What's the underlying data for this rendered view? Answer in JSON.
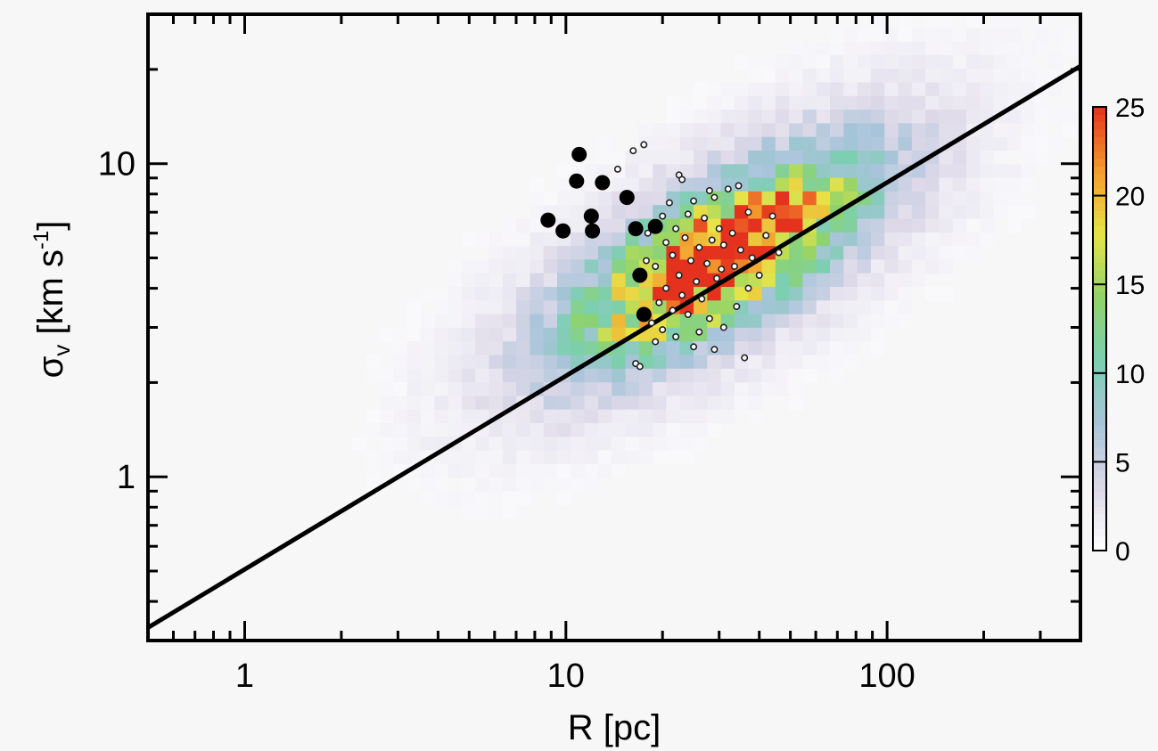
{
  "chart_data": {
    "type": "scatter",
    "subtype": "2D density histogram with overlaid scatter points and power-law line",
    "xlabel": "R [pc]",
    "ylabel_main": "σ",
    "ylabel_sub": "v",
    "ylabel_unit_pre": " [km s",
    "ylabel_unit_exp": "-1",
    "ylabel_unit_post": "]",
    "xscale": "log",
    "yscale": "log",
    "xlim": [
      0.5,
      400
    ],
    "ylim": [
      0.3,
      30
    ],
    "xticks": [
      {
        "value": 1,
        "label": "1"
      },
      {
        "value": 10,
        "label": "10"
      },
      {
        "value": 100,
        "label": "100"
      }
    ],
    "yticks": [
      {
        "value": 1,
        "label": "1"
      },
      {
        "value": 10,
        "label": "10"
      }
    ],
    "grid": false,
    "fit_line": {
      "points": [
        [
          0.5,
          0.33
        ],
        [
          400,
          20.5
        ]
      ],
      "color": "#000000"
    },
    "colorbar": {
      "range": [
        0,
        25
      ],
      "ticks": [
        {
          "value": 0,
          "label": "0"
        },
        {
          "value": 5,
          "label": "5"
        },
        {
          "value": 10,
          "label": "10"
        },
        {
          "value": 15,
          "label": "15"
        },
        {
          "value": 20,
          "label": "20"
        },
        {
          "value": 25,
          "label": "25"
        }
      ],
      "stops": [
        "#ffffff",
        "#dcd8e8",
        "#a8c4da",
        "#7ccfb0",
        "#8fd36a",
        "#e7e448",
        "#f49c2e",
        "#e4321e"
      ]
    },
    "density_peak": {
      "x": 30,
      "y": 5,
      "value": 25
    },
    "large_points": [
      {
        "x": 11,
        "y": 10.7
      },
      {
        "x": 10.8,
        "y": 8.8
      },
      {
        "x": 13,
        "y": 8.7
      },
      {
        "x": 15.5,
        "y": 7.8
      },
      {
        "x": 8.8,
        "y": 6.6
      },
      {
        "x": 12,
        "y": 6.8
      },
      {
        "x": 9.8,
        "y": 6.1
      },
      {
        "x": 12.1,
        "y": 6.1
      },
      {
        "x": 16.5,
        "y": 6.2
      },
      {
        "x": 19,
        "y": 6.3
      },
      {
        "x": 17,
        "y": 4.4
      },
      {
        "x": 17.5,
        "y": 3.3
      }
    ],
    "small_points": [
      {
        "x": 16.2,
        "y": 11
      },
      {
        "x": 17.5,
        "y": 11.5
      },
      {
        "x": 14.5,
        "y": 9.6
      },
      {
        "x": 22.5,
        "y": 9.2
      },
      {
        "x": 23,
        "y": 8.9
      },
      {
        "x": 21,
        "y": 7.5
      },
      {
        "x": 25,
        "y": 7.6
      },
      {
        "x": 29,
        "y": 7.8
      },
      {
        "x": 32,
        "y": 8.3
      },
      {
        "x": 34.5,
        "y": 8.5
      },
      {
        "x": 28,
        "y": 8.2
      },
      {
        "x": 20,
        "y": 6.8
      },
      {
        "x": 24,
        "y": 6.9
      },
      {
        "x": 27,
        "y": 6.7
      },
      {
        "x": 30,
        "y": 6.2
      },
      {
        "x": 33,
        "y": 6.0
      },
      {
        "x": 37,
        "y": 7.0
      },
      {
        "x": 22,
        "y": 6.2
      },
      {
        "x": 18,
        "y": 6.0
      },
      {
        "x": 20.5,
        "y": 5.6
      },
      {
        "x": 23.5,
        "y": 5.8
      },
      {
        "x": 26,
        "y": 5.4
      },
      {
        "x": 28.5,
        "y": 5.7
      },
      {
        "x": 31,
        "y": 5.5
      },
      {
        "x": 35,
        "y": 5.3
      },
      {
        "x": 38,
        "y": 5.0
      },
      {
        "x": 42,
        "y": 5.9
      },
      {
        "x": 46,
        "y": 5.2
      },
      {
        "x": 21.5,
        "y": 5.1
      },
      {
        "x": 24.5,
        "y": 4.9
      },
      {
        "x": 27.5,
        "y": 4.8
      },
      {
        "x": 30.5,
        "y": 4.6
      },
      {
        "x": 33.5,
        "y": 4.7
      },
      {
        "x": 19,
        "y": 4.7
      },
      {
        "x": 17.8,
        "y": 4.9
      },
      {
        "x": 22.5,
        "y": 4.4
      },
      {
        "x": 25.5,
        "y": 4.2
      },
      {
        "x": 29.5,
        "y": 4.3
      },
      {
        "x": 40,
        "y": 4.4
      },
      {
        "x": 20.5,
        "y": 4.0
      },
      {
        "x": 23,
        "y": 3.8
      },
      {
        "x": 26.5,
        "y": 3.7
      },
      {
        "x": 19.5,
        "y": 3.6
      },
      {
        "x": 21.5,
        "y": 3.4
      },
      {
        "x": 24,
        "y": 3.3
      },
      {
        "x": 28,
        "y": 3.2
      },
      {
        "x": 18.5,
        "y": 3.1
      },
      {
        "x": 20,
        "y": 2.95
      },
      {
        "x": 22,
        "y": 2.8
      },
      {
        "x": 26,
        "y": 2.9
      },
      {
        "x": 31,
        "y": 3.0
      },
      {
        "x": 25,
        "y": 2.6
      },
      {
        "x": 29,
        "y": 2.55
      },
      {
        "x": 36,
        "y": 2.4
      },
      {
        "x": 16.5,
        "y": 2.3
      },
      {
        "x": 17,
        "y": 2.25
      },
      {
        "x": 19,
        "y": 2.7
      },
      {
        "x": 34,
        "y": 3.5
      },
      {
        "x": 37,
        "y": 4.0
      },
      {
        "x": 44,
        "y": 6.8
      }
    ]
  }
}
